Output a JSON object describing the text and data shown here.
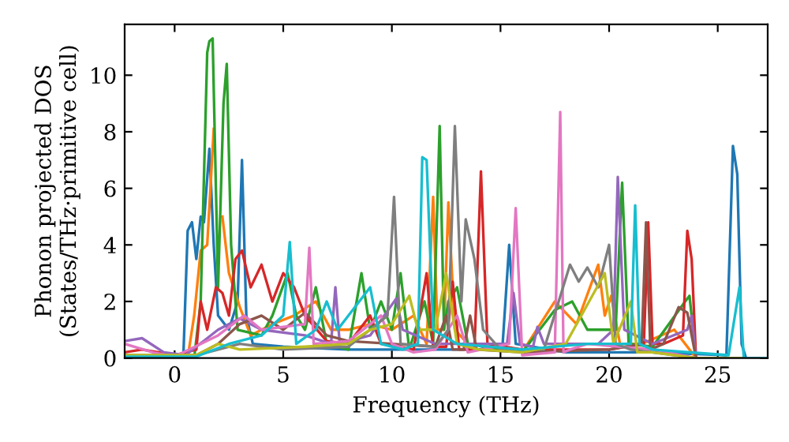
{
  "chart_data": {
    "type": "line",
    "xlabel": "Frequency (THz)",
    "ylabel": "Phonon projected DOS\n(States/THz·primitive cell)",
    "xlim": [
      -2.3,
      27.3
    ],
    "ylim": [
      0,
      11.8
    ],
    "xticks": [
      0,
      5,
      10,
      15,
      20,
      25
    ],
    "yticks": [
      0,
      2,
      4,
      6,
      8,
      10
    ],
    "grid": false,
    "legend": false,
    "marker": "none",
    "line_style": "solid",
    "series": [
      {
        "color": "#1f77b4",
        "x": [
          -2.3,
          0.4,
          0.6,
          0.8,
          1.0,
          1.2,
          1.35,
          1.6,
          1.8,
          2.0,
          2.5,
          2.9,
          3.1,
          3.3,
          3.6,
          5,
          8,
          10,
          12,
          14,
          15.1,
          15.4,
          15.7,
          18,
          22,
          25.4,
          25.6,
          25.7,
          25.9,
          26.1,
          26.3,
          27.3
        ],
        "values": [
          0,
          0,
          4.5,
          4.8,
          3.5,
          5,
          4.8,
          7.4,
          4,
          1.5,
          1,
          2,
          7,
          1.5,
          0.5,
          0.4,
          0.3,
          0.3,
          0.3,
          0.3,
          0.5,
          4,
          0.5,
          0.2,
          0.2,
          0.1,
          5,
          7.5,
          6.5,
          0.5,
          0,
          0
        ]
      },
      {
        "color": "#ff7f0e",
        "x": [
          -2.3,
          0.6,
          0.9,
          1.2,
          1.5,
          1.8,
          2.0,
          2.2,
          2.5,
          3.0,
          3.5,
          4.5,
          5.5,
          6.5,
          7.2,
          8,
          9,
          10,
          11,
          11.6,
          11.9,
          12.1,
          12.4,
          12.6,
          12.9,
          13.5,
          16,
          17.5,
          18.5,
          19.5,
          19.8,
          20.1,
          20.5,
          21.5,
          23,
          24,
          27.3
        ],
        "values": [
          0,
          0,
          1.5,
          3.8,
          4,
          8.1,
          null,
          5,
          3,
          1.8,
          0.8,
          1.2,
          1.5,
          2,
          1,
          1,
          1.2,
          1,
          1.5,
          0.5,
          5.7,
          1,
          1,
          5.5,
          1,
          0.5,
          0.2,
          2,
          1.2,
          3.3,
          1.5,
          2.2,
          0.5,
          0.5,
          1,
          0,
          0
        ]
      },
      {
        "color": "#2ca02c",
        "x": [
          -2.3,
          0.9,
          1.2,
          1.5,
          1.6,
          1.75,
          2.0,
          2.25,
          2.4,
          2.6,
          2.9,
          4.0,
          4.5,
          5.2,
          5.6,
          6.0,
          6.5,
          7.0,
          8.0,
          8.6,
          9.0,
          9.5,
          10.0,
          10.4,
          10.8,
          11.5,
          11.9,
          12.2,
          12.4,
          12.6,
          13.0,
          13.5,
          16,
          17.5,
          18.3,
          19,
          20.3,
          20.6,
          20.9,
          22,
          23.5,
          23.7,
          24,
          27.3
        ],
        "values": [
          0,
          0,
          2,
          10.8,
          11.2,
          11.3,
          2.5,
          9,
          10.4,
          4,
          1,
          0.8,
          1.5,
          3,
          1.5,
          1,
          2.5,
          0.5,
          0.3,
          3,
          1,
          2,
          1,
          3,
          0.3,
          2,
          0.5,
          8.2,
          1,
          2,
          2.5,
          0.5,
          0.2,
          1.7,
          2,
          1,
          1,
          6.2,
          0.5,
          0.4,
          2,
          2.2,
          0,
          0
        ]
      },
      {
        "color": "#d62728",
        "x": [
          -2.3,
          -1.5,
          0,
          1.0,
          1.2,
          1.5,
          1.9,
          2.2,
          2.5,
          2.8,
          3.1,
          3.5,
          4,
          4.5,
          5,
          5.5,
          6,
          7,
          8,
          9,
          9.5,
          11,
          11.6,
          11.9,
          12.5,
          12.8,
          13.1,
          13.8,
          14.1,
          14.4,
          16,
          20,
          21.6,
          21.8,
          22,
          22.5,
          23.4,
          23.6,
          23.8,
          24,
          27.3
        ],
        "values": [
          0.2,
          0.3,
          0.1,
          0.3,
          2,
          1,
          2.5,
          2.3,
          1.5,
          3.5,
          3.8,
          2.5,
          3.3,
          2,
          3,
          2.5,
          1.5,
          0.6,
          0.5,
          1.5,
          0.5,
          0.3,
          3,
          0.4,
          0.4,
          2.7,
          0.3,
          0.3,
          6.6,
          0.5,
          0.3,
          0.3,
          0.5,
          4.8,
          0.5,
          0.5,
          0.8,
          4.5,
          3.5,
          0,
          0
        ]
      },
      {
        "color": "#9467bd",
        "x": [
          -2.3,
          -1.5,
          -0.5,
          0.5,
          2,
          3,
          4,
          6,
          7.2,
          7.4,
          7.6,
          9,
          10.2,
          10.5,
          12,
          15.3,
          15.6,
          15.9,
          16.5,
          16.7,
          17,
          19.5,
          20.2,
          20.4,
          20.7,
          22,
          23.6,
          23.8,
          24,
          27.3
        ],
        "values": [
          0.6,
          0.7,
          0.2,
          0.1,
          1,
          1.4,
          1,
          0.8,
          0.5,
          2.5,
          0.5,
          0.8,
          2.1,
          1,
          0.5,
          0.5,
          2.3,
          0.5,
          0.4,
          1.1,
          0.5,
          0.5,
          1,
          6.4,
          1,
          0.5,
          1,
          1.5,
          0,
          0
        ]
      },
      {
        "color": "#8c564b",
        "x": [
          -2.3,
          0,
          1,
          2,
          3,
          4,
          5,
          6,
          7,
          8,
          10,
          12,
          12.5,
          12.8,
          13.3,
          13.6,
          13.9,
          16,
          20,
          21.5,
          21.7,
          21.9,
          22.5,
          23.2,
          23.6,
          24,
          27.3
        ],
        "values": [
          0.1,
          0.05,
          0.1,
          0.5,
          1.2,
          1.5,
          1,
          1.6,
          0.8,
          0.6,
          0.5,
          0.4,
          1.5,
          0.3,
          0.3,
          1.5,
          0.3,
          0.2,
          0.3,
          0.5,
          4.8,
          0.3,
          0.5,
          1.8,
          1.6,
          0,
          0
        ]
      },
      {
        "color": "#e377c2",
        "x": [
          -2.3,
          -1,
          0,
          1.2,
          2,
          3.2,
          4,
          6,
          6.2,
          6.4,
          8,
          9.5,
          10,
          11,
          12,
          13,
          13.5,
          15.4,
          15.7,
          16,
          17.5,
          17.75,
          17.9,
          18.2,
          19,
          22,
          24,
          27.3
        ],
        "values": [
          0.5,
          0.2,
          0.05,
          0.5,
          0.8,
          1.5,
          1,
          1.2,
          3.9,
          0.5,
          0.6,
          1.5,
          0.5,
          0.2,
          0.3,
          1.5,
          0.2,
          0.5,
          5.3,
          0.1,
          0.2,
          8.7,
          0.2,
          0.3,
          0.5,
          0.3,
          0,
          0
        ]
      },
      {
        "color": "#7f7f7f",
        "x": [
          -2.3,
          1,
          3,
          5,
          8,
          9,
          9.8,
          10.1,
          10.4,
          12,
          12.6,
          12.9,
          13.2,
          13.4,
          13.8,
          14.2,
          15,
          17,
          18.2,
          18.6,
          19,
          19.5,
          20,
          20.3,
          21,
          24,
          27.3
        ],
        "values": [
          0.1,
          0.1,
          0.5,
          0.3,
          0.4,
          1,
          1.5,
          5.7,
          0.5,
          0.4,
          1,
          8.2,
          2,
          4.9,
          3.5,
          1,
          0.3,
          0.3,
          3.3,
          2.7,
          3.2,
          2.5,
          4,
          0.5,
          0.3,
          0,
          0
        ]
      },
      {
        "color": "#bcbd22",
        "x": [
          -2.3,
          1,
          2,
          3,
          6,
          8,
          9,
          10,
          10.8,
          11.2,
          12,
          12.5,
          13,
          14,
          16,
          18,
          19.8,
          20.2,
          21,
          21.3,
          22,
          24,
          27.3
        ],
        "values": [
          0.1,
          0.1,
          0.5,
          0.3,
          0.4,
          0.5,
          1,
          1.2,
          2.2,
          1,
          1,
          3,
          0.5,
          0.3,
          0.2,
          0.5,
          3,
          0.5,
          2,
          0.2,
          0.2,
          0,
          0
        ]
      },
      {
        "color": "#17becf",
        "x": [
          -2.3,
          1,
          2.5,
          4,
          5,
          5.3,
          5.6,
          6.5,
          7,
          7.5,
          9,
          9.5,
          10.5,
          11.2,
          11.4,
          11.6,
          11.9,
          13,
          16,
          19,
          21,
          21.2,
          21.4,
          22,
          25.5,
          26,
          26.2,
          27.3
        ],
        "values": [
          0.05,
          0.05,
          0.5,
          0.8,
          1.5,
          4.1,
          0.5,
          1,
          2,
          1,
          2.5,
          0.5,
          0.3,
          0.5,
          7.1,
          7,
          1,
          0.5,
          0.3,
          0.5,
          0.5,
          5.4,
          0.5,
          0.3,
          0.1,
          2.5,
          0,
          0
        ]
      }
    ]
  }
}
